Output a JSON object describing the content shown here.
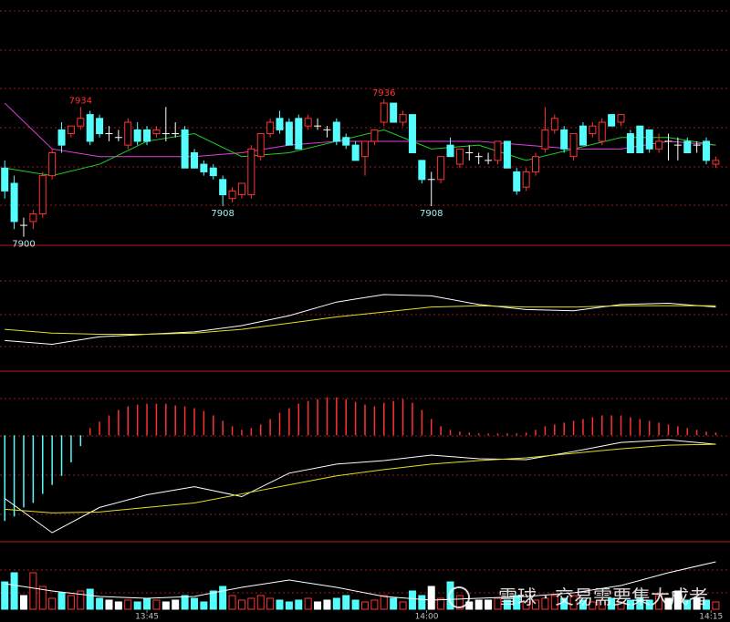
{
  "chart_data": [
    {
      "type": "candlestick",
      "xlim": [
        -0.5,
        76.5
      ],
      "ylim": [
        7898,
        7962
      ],
      "up_color": "#ff3232",
      "down_color": "#54fcfc",
      "flat_color": "#ffffff",
      "open": [
        7918,
        7914,
        7903,
        7904,
        7906,
        7916,
        7928,
        7927,
        7929,
        7932,
        7931,
        7927,
        7926,
        7924,
        7928,
        7928,
        7927,
        7927,
        7927,
        7928,
        7922,
        7919,
        7918,
        7915,
        7910,
        7911,
        7911,
        7921,
        7927,
        7931,
        7930,
        7931,
        7929,
        7929,
        7928,
        7930,
        7926,
        7924,
        7921,
        7925,
        7930,
        7935,
        7930,
        7932,
        7920,
        7915,
        7915,
        7924,
        7919,
        7922,
        7921,
        7920,
        7920,
        7925,
        7917,
        7913,
        7917,
        7923,
        7928,
        7928,
        7921,
        7929,
        7927,
        7925,
        7932,
        7930,
        7927,
        7929,
        7928,
        7923,
        7925,
        7924,
        7925,
        7924,
        7925,
        7919
      ],
      "high": [
        7920,
        7916,
        7905,
        7907,
        7917,
        7923,
        7930,
        7929,
        7934,
        7933,
        7932,
        7929,
        7928,
        7931,
        7930,
        7929,
        7929,
        7934,
        7930,
        7929,
        7923,
        7920,
        7919,
        7916,
        7913,
        7914,
        7924,
        7927,
        7931,
        7933,
        7931,
        7932,
        7932,
        7931,
        7929,
        7931,
        7927,
        7925,
        7925,
        7928,
        7936,
        7935,
        7933,
        7932,
        7920,
        7917,
        7921,
        7926,
        7923,
        7924,
        7922,
        7922,
        7925,
        7925,
        7918,
        7918,
        7922,
        7934,
        7932,
        7929,
        7927,
        7930,
        7930,
        7931,
        7932,
        7932,
        7928,
        7929,
        7928,
        7927,
        7927,
        7926,
        7926,
        7925,
        7926,
        7921
      ],
      "low": [
        7910,
        7902,
        7900,
        7902,
        7905,
        7915,
        7922,
        7926,
        7928,
        7924,
        7926,
        7925,
        7925,
        7923,
        7924,
        7924,
        7926,
        7925,
        7926,
        7918,
        7918,
        7916,
        7915,
        7908,
        7909,
        7910,
        7910,
        7920,
        7926,
        7927,
        7924,
        7923,
        7928,
        7928,
        7926,
        7924,
        7923,
        7920,
        7916,
        7924,
        7929,
        7930,
        7929,
        7922,
        7914,
        7908,
        7914,
        7921,
        7918,
        7920,
        7919,
        7919,
        7919,
        7918,
        7911,
        7912,
        7916,
        7922,
        7927,
        7922,
        7920,
        7924,
        7926,
        7924,
        7929,
        7929,
        7922,
        7922,
        7922,
        7922,
        7920,
        7920,
        7922,
        7922,
        7919,
        7918
      ],
      "close": [
        7912,
        7904,
        7903,
        7906,
        7916,
        7922,
        7924,
        7929,
        7931,
        7925,
        7927,
        7927,
        7926,
        7930,
        7925,
        7925,
        7928,
        7927,
        7927,
        7918,
        7918,
        7917,
        7916,
        7911,
        7912,
        7914,
        7923,
        7927,
        7930,
        7928,
        7924,
        7923,
        7931,
        7929,
        7928,
        7925,
        7924,
        7920,
        7925,
        7928,
        7935,
        7930,
        7932,
        7922,
        7915,
        7915,
        7921,
        7921,
        7923,
        7922,
        7921,
        7920,
        7925,
        7918,
        7912,
        7917,
        7921,
        7928,
        7931,
        7923,
        7927,
        7924,
        7929,
        7930,
        7929,
        7932,
        7922,
        7922,
        7923,
        7925,
        7925,
        7924,
        7922,
        7924,
        7920,
        7920
      ],
      "series": [
        {
          "color": "#e040e0",
          "x": [
            0,
            5,
            10,
            15,
            20,
            25,
            30,
            35,
            40,
            45,
            50,
            55,
            60,
            65,
            70,
            75
          ],
          "values": [
            7935,
            7923,
            7921,
            7921,
            7921,
            7922,
            7924,
            7925,
            7925,
            7925,
            7925,
            7924,
            7923,
            7923,
            7925,
            7924
          ]
        },
        {
          "color": "#20d020",
          "x": [
            0,
            5,
            10,
            15,
            20,
            25,
            30,
            35,
            40,
            45,
            50,
            55,
            60,
            65,
            70,
            75
          ],
          "values": [
            7918,
            7916,
            7919,
            7925,
            7927,
            7921,
            7922,
            7925,
            7928,
            7923,
            7924,
            7920,
            7923,
            7926,
            7926,
            7924
          ]
        }
      ],
      "annotations": [
        {
          "x": 8,
          "value": 7934
        },
        {
          "x": 2,
          "value": 7900
        },
        {
          "x": 23,
          "value": 7908
        },
        {
          "x": 40,
          "value": 7936
        },
        {
          "x": 45,
          "value": 7908
        }
      ]
    },
    {
      "type": "line",
      "xlim": [
        -0.5,
        76.5
      ],
      "ylim": [
        0,
        100
      ],
      "series": [
        {
          "color": "#ffffff",
          "x": [
            0,
            5,
            10,
            15,
            20,
            25,
            30,
            35,
            40,
            45,
            50,
            55,
            60,
            65,
            70,
            75
          ],
          "values": [
            24,
            21,
            27,
            29,
            31,
            36,
            44,
            55,
            61,
            60,
            53,
            49,
            48,
            53,
            54,
            51
          ]
        },
        {
          "color": "#e0e020",
          "x": [
            0,
            5,
            10,
            15,
            20,
            25,
            30,
            35,
            40,
            45,
            50,
            55,
            60,
            65,
            70,
            75
          ],
          "values": [
            33,
            30,
            29,
            29,
            30,
            33,
            38,
            43,
            47,
            51,
            52,
            51,
            51,
            52,
            52,
            52
          ]
        }
      ]
    },
    {
      "type": "macd",
      "xlim": [
        -0.5,
        76.5
      ],
      "ylim": [
        -117,
        70
      ],
      "pos_color": "#ff3232",
      "neg_color": "#54fcfc",
      "values": [
        -95,
        -90,
        -80,
        -75,
        -65,
        -55,
        -45,
        -30,
        -12,
        8,
        15,
        22,
        28,
        32,
        34,
        35,
        35,
        35,
        33,
        32,
        30,
        27,
        22,
        16,
        10,
        6,
        8,
        12,
        18,
        25,
        30,
        35,
        38,
        40,
        42,
        42,
        40,
        37,
        34,
        32,
        36,
        38,
        40,
        36,
        28,
        18,
        10,
        6,
        4,
        3,
        2,
        2,
        2,
        2,
        2,
        3,
        6,
        10,
        12,
        14,
        16,
        18,
        20,
        22,
        22,
        22,
        20,
        18,
        16,
        14,
        12,
        10,
        8,
        6,
        4,
        3
      ],
      "series": [
        {
          "color": "#ffffff",
          "x": [
            0,
            5,
            10,
            15,
            20,
            25,
            30,
            35,
            40,
            45,
            50,
            55,
            60,
            65,
            70,
            75
          ],
          "values": [
            -70,
            -108,
            -80,
            -66,
            -57,
            -68,
            -42,
            -32,
            -28,
            -22,
            -26,
            -27,
            -18,
            -8,
            -5,
            -10
          ]
        },
        {
          "color": "#e0e020",
          "x": [
            0,
            5,
            10,
            15,
            20,
            25,
            30,
            35,
            40,
            45,
            50,
            55,
            60,
            65,
            70,
            75
          ],
          "values": [
            -82,
            -86,
            -85,
            -80,
            -75,
            -65,
            -55,
            -45,
            -38,
            -32,
            -28,
            -25,
            -20,
            -15,
            -11,
            -10
          ]
        }
      ]
    },
    {
      "type": "volume",
      "xlim": [
        -0.5,
        76.5
      ],
      "ylim": [
        0,
        70
      ],
      "values": [
        30,
        40,
        15,
        40,
        25,
        12,
        18,
        15,
        20,
        22,
        12,
        10,
        8,
        10,
        8,
        12,
        10,
        8,
        10,
        15,
        12,
        8,
        20,
        25,
        15,
        10,
        12,
        15,
        12,
        10,
        8,
        10,
        12,
        8,
        10,
        12,
        15,
        10,
        8,
        10,
        15,
        12,
        8,
        20,
        15,
        25,
        12,
        30,
        15,
        8,
        10,
        10,
        12,
        10,
        15,
        8,
        10,
        12,
        15,
        12,
        15,
        10,
        8,
        10,
        12,
        8,
        10,
        12,
        10,
        15,
        12,
        20,
        10,
        12,
        10,
        8
      ],
      "series": [
        {
          "color": "#ffffff",
          "x": [
            0,
            5,
            10,
            15,
            20,
            25,
            30,
            35,
            40,
            45,
            50,
            55,
            60,
            65,
            70,
            75
          ],
          "values": [
            28,
            20,
            14,
            12,
            14,
            24,
            32,
            24,
            14,
            10,
            12,
            14,
            18,
            26,
            40,
            52
          ]
        }
      ],
      "xticks": [
        {
          "value": 15,
          "label": "13:45"
        },
        {
          "value": 44.5,
          "label": "14:00"
        },
        {
          "value": 74.5,
          "label": "14:15"
        }
      ]
    }
  ],
  "watermark": "雪球 · 交易需要集大成者"
}
